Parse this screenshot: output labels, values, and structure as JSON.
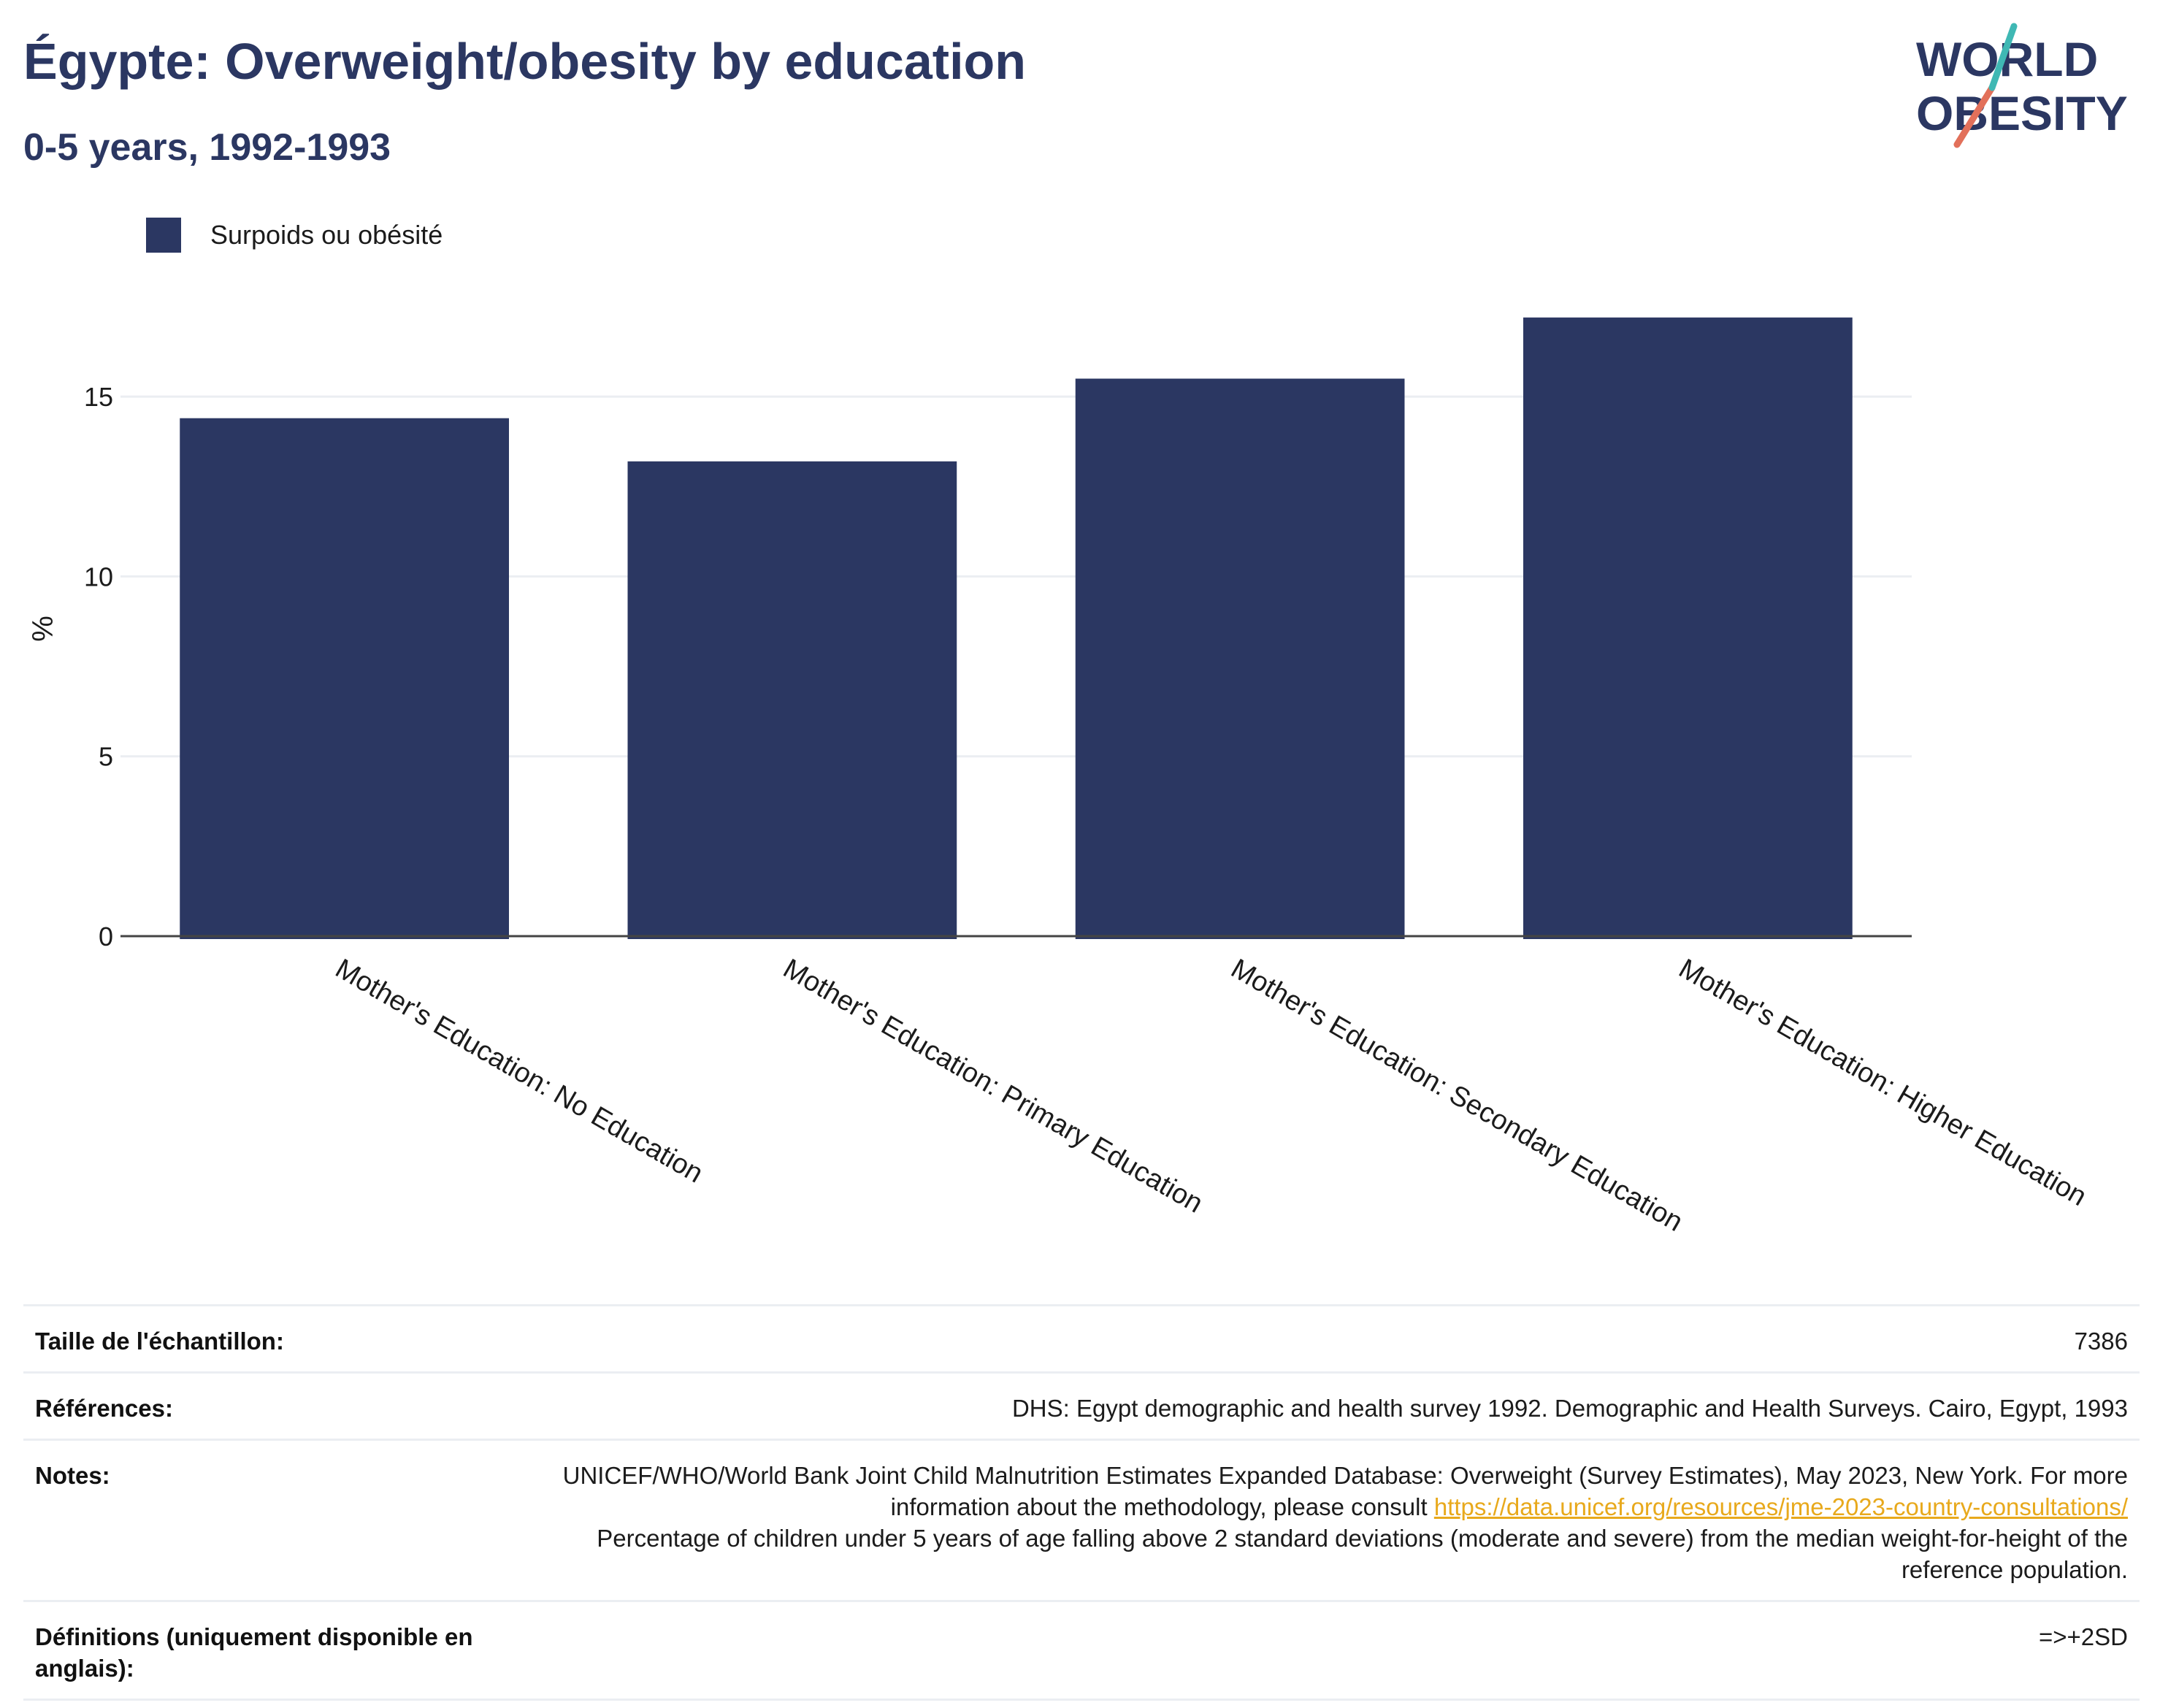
{
  "header": {
    "title": "Égypte: Overweight/obesity by education",
    "subtitle": "0-5 years, 1992-1993"
  },
  "logo": {
    "line1": "WORLD",
    "line2": "OBESITY"
  },
  "colors": {
    "bar": "#2b3762",
    "title": "#2b3762",
    "link": "#e8a91c",
    "grid": "#ebeef2"
  },
  "chart_data": {
    "type": "bar",
    "categories": [
      "Mother's Education: No Education",
      "Mother's Education: Primary Education",
      "Mother's Education: Secondary Education",
      "Mother's Education: Higher Education"
    ],
    "series": [
      {
        "name": "Surpoids ou obésité",
        "values": [
          14.4,
          13.2,
          15.5,
          17.2
        ]
      }
    ],
    "ylabel": "%",
    "xlabel": "",
    "ylim": [
      0,
      17.5
    ],
    "yticks": [
      0,
      5,
      10,
      15
    ],
    "grid": true,
    "legend_position": "top-left"
  },
  "info": {
    "sample_label": "Taille de l'échantillon:",
    "sample_value": "7386",
    "refs_label": "Références:",
    "refs_value": "DHS: Egypt demographic and health survey 1992. Demographic and Health Surveys. Cairo, Egypt, 1993",
    "notes_label": "Notes:",
    "notes_text1": "UNICEF/WHO/World Bank Joint Child Malnutrition Estimates Expanded Database: Overweight (Survey Estimates), May 2023, New York. For more information about the methodology, please consult ",
    "notes_link": "https://data.unicef.org/resources/jme-2023-country-consultations/",
    "notes_text2": "Percentage of children under 5 years of age falling above 2 standard deviations (moderate and severe) from the median weight-for-height of the reference population.",
    "defs_label": "Définitions (uniquement disponible en anglais):",
    "defs_value": "=>+2SD"
  }
}
